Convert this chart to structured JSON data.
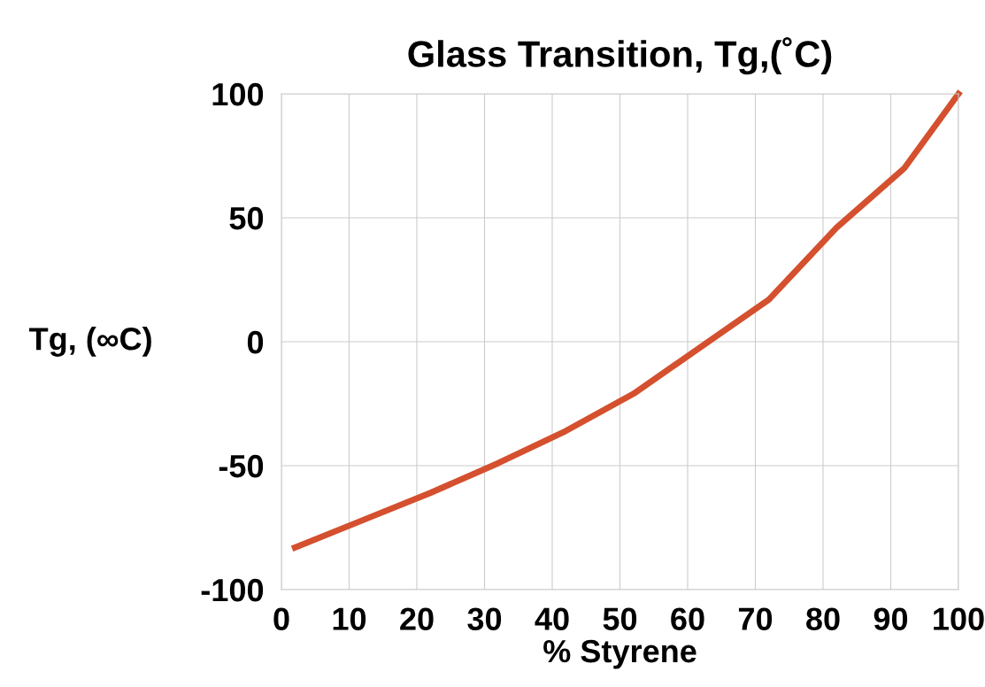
{
  "chart_data": {
    "type": "line",
    "title": "Glass Transition, Tg,(˚C)",
    "xlabel": "% Styrene",
    "ylabel": "Tg, (∞C)",
    "series": [
      {
        "color": "#d4502e",
        "x": [
          2,
          12,
          22,
          32,
          42,
          52,
          62,
          72,
          82,
          92,
          100
        ],
        "values": [
          -83,
          -72,
          -61,
          -49,
          -36,
          -21,
          -2,
          17,
          46,
          70,
          100
        ]
      }
    ],
    "xlim": [
      0,
      100
    ],
    "xticks": [
      0,
      10,
      20,
      30,
      40,
      50,
      60,
      70,
      80,
      90,
      100
    ],
    "ylim": [
      -100,
      100
    ],
    "yticks": [
      -100,
      -50,
      0,
      50,
      100
    ],
    "grid": true,
    "marker": "none",
    "line_style": "solid"
  }
}
